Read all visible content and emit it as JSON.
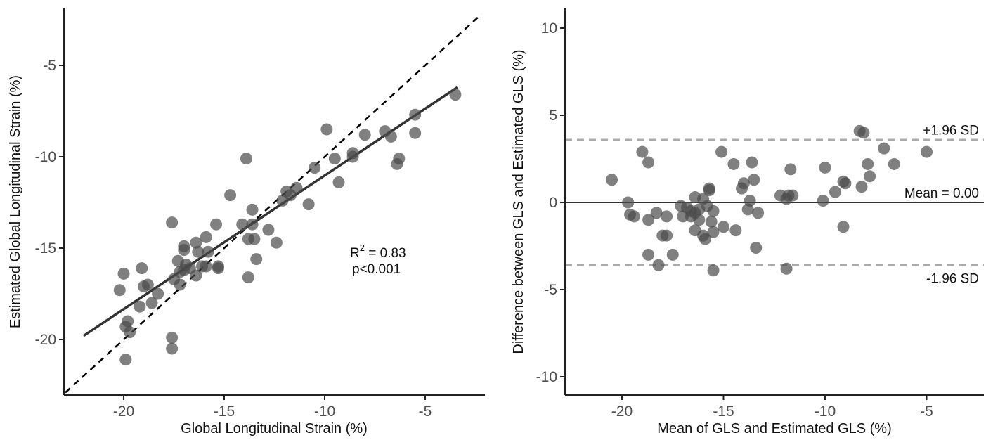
{
  "colors": {
    "point": "#4a4a4a",
    "fit_line": "#333333",
    "identity_line": "#000000",
    "mean_line": "#333333",
    "limit_line": "#aaaaaa",
    "axis": "#222222"
  },
  "chart_data": [
    {
      "type": "scatter",
      "title": "",
      "xlabel": "Global Longitudinal Strain (%)",
      "ylabel": "Estimated Global Longitudinal Strain (%)",
      "xlim": [
        -23,
        -2
      ],
      "ylim": [
        -23,
        -2.2
      ],
      "xticks": [
        -20,
        -15,
        -10,
        -5
      ],
      "yticks": [
        -5,
        -10,
        -15,
        -20
      ],
      "x_tick_labels": [
        "-20",
        "-15",
        "-10",
        "-5"
      ],
      "y_tick_labels": [
        "-5",
        "-10",
        "-15",
        "-20"
      ],
      "grid": false,
      "points": [
        [
          -3.5,
          -6.6
        ],
        [
          -5.5,
          -7.7
        ],
        [
          -5.5,
          -8.7
        ],
        [
          -6.3,
          -10.1
        ],
        [
          -6.4,
          -10.4
        ],
        [
          -6.7,
          -8.9
        ],
        [
          -7.0,
          -8.6
        ],
        [
          -8.0,
          -8.8
        ],
        [
          -8.6,
          -9.8
        ],
        [
          -8.6,
          -10.0
        ],
        [
          -9.3,
          -11.4
        ],
        [
          -9.5,
          -10.1
        ],
        [
          -9.9,
          -8.5
        ],
        [
          -10.5,
          -10.6
        ],
        [
          -10.8,
          -12.6
        ],
        [
          -11.4,
          -11.7
        ],
        [
          -11.7,
          -12.1
        ],
        [
          -11.9,
          -11.9
        ],
        [
          -12.1,
          -12.4
        ],
        [
          -12.4,
          -14.7
        ],
        [
          -12.8,
          -14.0
        ],
        [
          -13.4,
          -15.6
        ],
        [
          -13.5,
          -14.5
        ],
        [
          -13.6,
          -12.9
        ],
        [
          -13.6,
          -13.7
        ],
        [
          -13.8,
          -14.5
        ],
        [
          -13.8,
          -16.6
        ],
        [
          -13.9,
          -10.1
        ],
        [
          -14.1,
          -13.7
        ],
        [
          -14.7,
          -12.1
        ],
        [
          -15.3,
          -16.1
        ],
        [
          -15.3,
          -16.0
        ],
        [
          -15.4,
          -13.7
        ],
        [
          -15.8,
          -15.2
        ],
        [
          -15.9,
          -14.4
        ],
        [
          -15.9,
          -16.0
        ],
        [
          -16.1,
          -16.0
        ],
        [
          -16.3,
          -15.2
        ],
        [
          -16.4,
          -14.7
        ],
        [
          -16.4,
          -16.5
        ],
        [
          -16.7,
          -16.1
        ],
        [
          -16.9,
          -15.9
        ],
        [
          -17.0,
          -16.2
        ],
        [
          -17.0,
          -14.9
        ],
        [
          -17.0,
          -15.1
        ],
        [
          -17.2,
          -16.3
        ],
        [
          -17.2,
          -17.0
        ],
        [
          -17.3,
          -15.7
        ],
        [
          -17.5,
          -16.7
        ],
        [
          -17.6,
          -13.6
        ],
        [
          -17.6,
          -19.9
        ],
        [
          -17.6,
          -20.5
        ],
        [
          -18.3,
          -17.5
        ],
        [
          -18.6,
          -18.0
        ],
        [
          -18.8,
          -17.0
        ],
        [
          -19.0,
          -17.1
        ],
        [
          -19.1,
          -16.1
        ],
        [
          -19.2,
          -18.2
        ],
        [
          -19.7,
          -19.6
        ],
        [
          -19.8,
          -19.0
        ],
        [
          -19.9,
          -19.3
        ],
        [
          -19.9,
          -21.1
        ],
        [
          -20.0,
          -16.4
        ],
        [
          -20.2,
          -17.3
        ]
      ],
      "fit_line": {
        "x": [
          -22,
          -3.4
        ],
        "y": [
          -19.8,
          -6.2
        ]
      },
      "identity_line": {
        "x": [
          -22.9,
          -2.2
        ],
        "y": [
          -22.9,
          -2.2
        ]
      },
      "annotations": {
        "r2_base": "R",
        "r2_sup": "2",
        "r2_value": " = 0.83",
        "p_value": "p<0.001"
      }
    },
    {
      "type": "scatter",
      "title": "",
      "xlabel": "Mean of GLS and Estimated GLS (%)",
      "ylabel": "Difference between GLS and Estimated GLS (%)",
      "xlim": [
        -23,
        -2
      ],
      "ylim": [
        -11,
        11
      ],
      "xticks": [
        -20,
        -15,
        -10,
        -5
      ],
      "yticks": [
        10,
        5,
        0,
        -5,
        -10
      ],
      "x_tick_labels": [
        "-20",
        "-15",
        "-10",
        "-5"
      ],
      "y_tick_labels": [
        "10",
        "5",
        "0",
        "-5",
        "-10"
      ],
      "grid": false,
      "points": [
        [
          -20.5,
          1.3
        ],
        [
          -19.7,
          0.0
        ],
        [
          -19.6,
          -0.7
        ],
        [
          -19.4,
          -0.8
        ],
        [
          -19.0,
          2.9
        ],
        [
          -18.7,
          2.3
        ],
        [
          -18.7,
          -1.0
        ],
        [
          -18.7,
          -3.0
        ],
        [
          -18.3,
          -0.6
        ],
        [
          -18.2,
          -3.6
        ],
        [
          -18.0,
          -1.9
        ],
        [
          -17.8,
          -0.8
        ],
        [
          -17.8,
          -1.9
        ],
        [
          -17.5,
          -3.0
        ],
        [
          -17.1,
          -0.2
        ],
        [
          -17.0,
          -0.8
        ],
        [
          -16.8,
          -0.3
        ],
        [
          -16.6,
          -0.5
        ],
        [
          -16.6,
          -0.8
        ],
        [
          -16.4,
          0.3
        ],
        [
          -16.4,
          -0.6
        ],
        [
          -16.4,
          -1.6
        ],
        [
          -16.2,
          -1.0
        ],
        [
          -16.2,
          -0.4
        ],
        [
          -16.0,
          0.2
        ],
        [
          -16.0,
          -1.9
        ],
        [
          -15.9,
          -2.1
        ],
        [
          -15.8,
          -0.2
        ],
        [
          -15.7,
          0.7
        ],
        [
          -15.7,
          0.8
        ],
        [
          -15.6,
          -1.1
        ],
        [
          -15.5,
          -1.7
        ],
        [
          -15.5,
          -0.5
        ],
        [
          -15.5,
          -3.9
        ],
        [
          -15.1,
          2.9
        ],
        [
          -15.0,
          -1.4
        ],
        [
          -14.5,
          2.2
        ],
        [
          -14.4,
          -1.6
        ],
        [
          -14.1,
          0.8
        ],
        [
          -14.0,
          1.1
        ],
        [
          -13.8,
          -0.4
        ],
        [
          -13.7,
          0.1
        ],
        [
          -13.6,
          2.3
        ],
        [
          -13.5,
          1.3
        ],
        [
          -13.4,
          -2.6
        ],
        [
          -13.3,
          -0.6
        ],
        [
          -12.2,
          0.4
        ],
        [
          -11.9,
          0.2
        ],
        [
          -11.9,
          -3.8
        ],
        [
          -11.8,
          0.4
        ],
        [
          -11.7,
          1.9
        ],
        [
          -11.6,
          0.4
        ],
        [
          -10.1,
          0.1
        ],
        [
          -10.0,
          2.0
        ],
        [
          -9.5,
          0.6
        ],
        [
          -9.1,
          -1.4
        ],
        [
          -9.1,
          1.2
        ],
        [
          -9.0,
          1.1
        ],
        [
          -8.3,
          4.1
        ],
        [
          -8.2,
          0.9
        ],
        [
          -8.1,
          4.0
        ],
        [
          -7.9,
          2.2
        ],
        [
          -7.8,
          1.5
        ],
        [
          -7.1,
          3.1
        ],
        [
          -6.6,
          2.2
        ],
        [
          -5.0,
          2.9
        ]
      ],
      "mean_line": {
        "value": 0.0,
        "label": "Mean = 0.00"
      },
      "upper_limit": {
        "value": 3.6,
        "label": "+1.96 SD"
      },
      "lower_limit": {
        "value": -3.6,
        "label": "-1.96 SD"
      }
    }
  ]
}
